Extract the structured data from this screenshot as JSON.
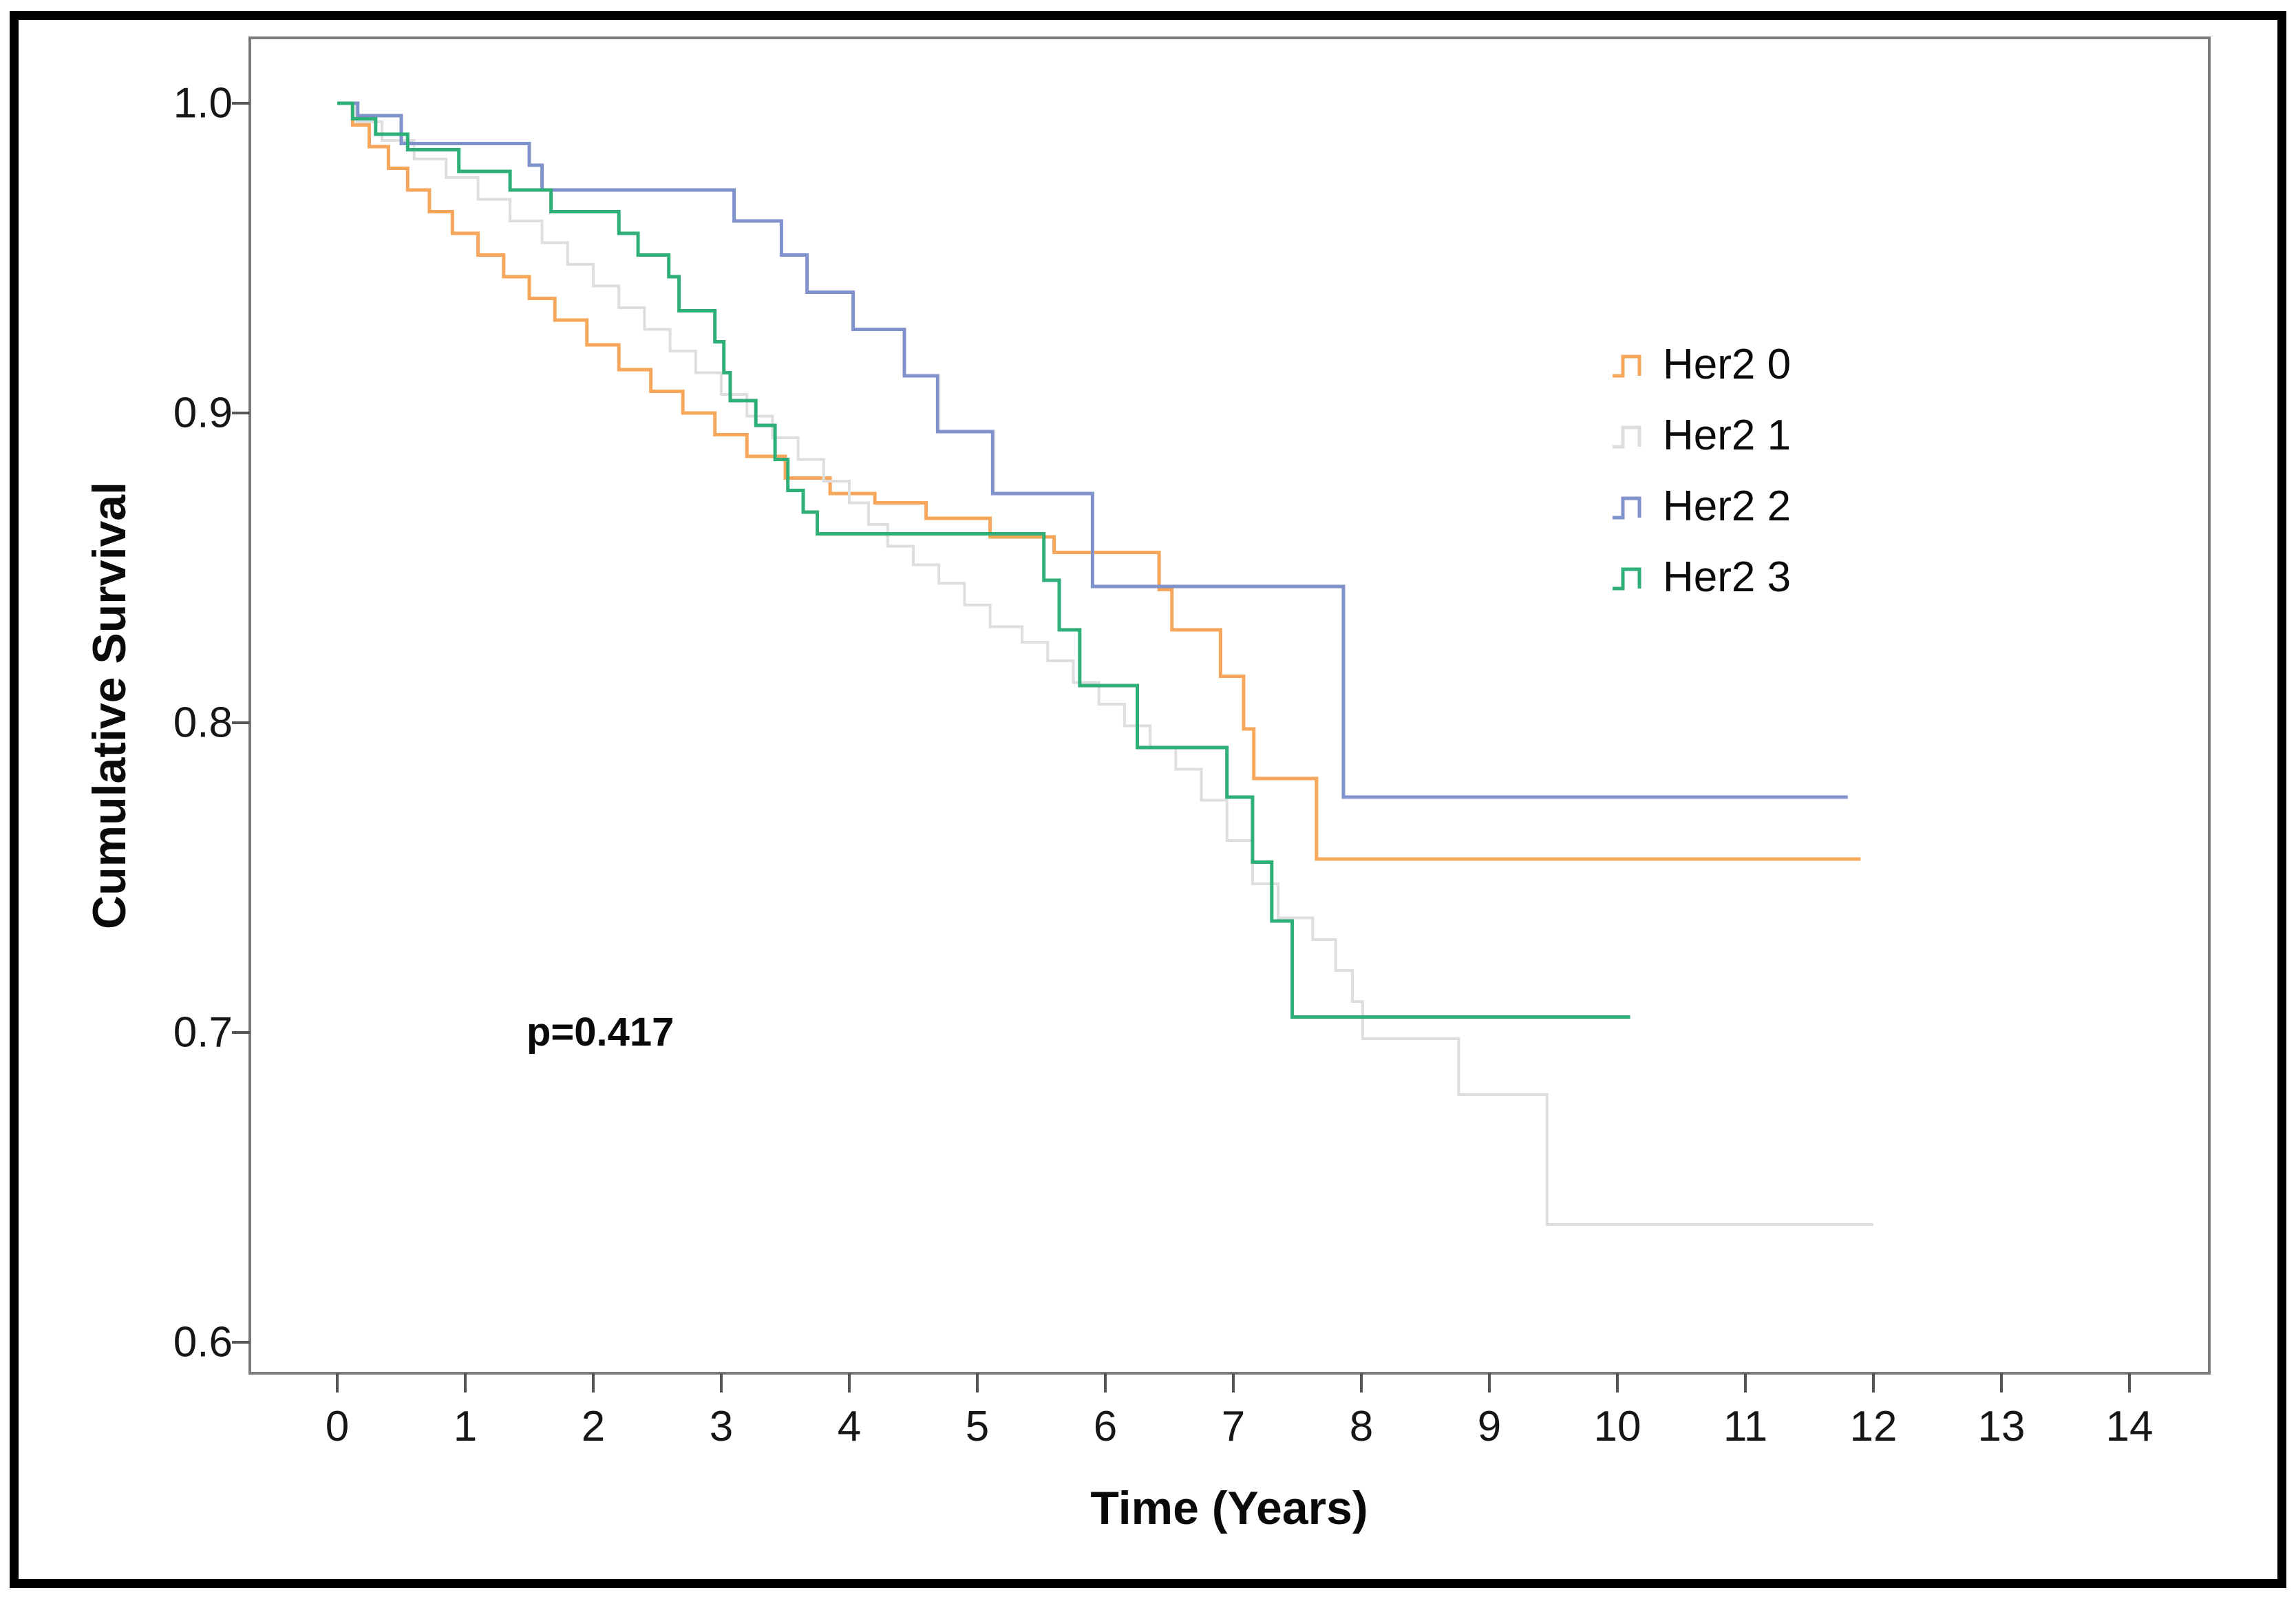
{
  "chart": {
    "p_value": "p=0.417",
    "x_axis": {
      "label": "Time (Years)",
      "ticks": [
        "0",
        "1",
        "2",
        "3",
        "4",
        "5",
        "6",
        "7",
        "8",
        "9",
        "10",
        "11",
        "12",
        "13",
        "14"
      ]
    },
    "y_axis": {
      "label": "Cumulative Survival",
      "ticks": [
        "1.0",
        "0.9",
        "0.8",
        "0.7",
        "0.6"
      ]
    },
    "legend": [
      {
        "label": "Her2 0",
        "color": "#F6A75B"
      },
      {
        "label": "Her2 1",
        "color": "#DEDEDE"
      },
      {
        "label": "Her2 2",
        "color": "#8092CC"
      },
      {
        "label": "Her2 3",
        "color": "#2EAF78"
      }
    ],
    "chart_data": {
      "type": "line",
      "subtype": "kaplan-meier-step-curves",
      "title": "",
      "xlabel": "Time (Years)",
      "ylabel": "Cumulative Survival",
      "xlim": [
        -0.68,
        14.6
      ],
      "ylim": [
        0.59,
        1.012
      ],
      "x_ticks": [
        0,
        1,
        2,
        3,
        4,
        5,
        6,
        7,
        8,
        9,
        10,
        11,
        12,
        13,
        14
      ],
      "y_ticks": [
        1.0,
        0.9,
        0.8,
        0.7,
        0.6
      ],
      "grid": false,
      "legend_position": "upper right",
      "annotation": {
        "text": "p=0.417",
        "x": 1.5,
        "y": 0.695
      },
      "series": [
        {
          "name": "Her2 0",
          "color": "#F6A75B",
          "end_x": 11.9,
          "points": [
            [
              0,
              1.0
            ],
            [
              0.12,
              0.993
            ],
            [
              0.25,
              0.986
            ],
            [
              0.4,
              0.979
            ],
            [
              0.55,
              0.972
            ],
            [
              0.72,
              0.965
            ],
            [
              0.9,
              0.958
            ],
            [
              1.1,
              0.951
            ],
            [
              1.3,
              0.944
            ],
            [
              1.5,
              0.937
            ],
            [
              1.7,
              0.93
            ],
            [
              1.95,
              0.922
            ],
            [
              2.2,
              0.914
            ],
            [
              2.45,
              0.907
            ],
            [
              2.7,
              0.9
            ],
            [
              2.95,
              0.893
            ],
            [
              3.2,
              0.886
            ],
            [
              3.5,
              0.879
            ],
            [
              3.85,
              0.874
            ],
            [
              4.2,
              0.871
            ],
            [
              4.6,
              0.866
            ],
            [
              5.1,
              0.86
            ],
            [
              5.6,
              0.855
            ],
            [
              6.42,
              0.843
            ],
            [
              6.52,
              0.83
            ],
            [
              6.9,
              0.815
            ],
            [
              7.08,
              0.798
            ],
            [
              7.16,
              0.782
            ],
            [
              7.65,
              0.756
            ]
          ]
        },
        {
          "name": "Her2 1",
          "color": "#DEDEDE",
          "end_x": 12.0,
          "points": [
            [
              0,
              1.0
            ],
            [
              0.15,
              0.994
            ],
            [
              0.35,
              0.988
            ],
            [
              0.6,
              0.982
            ],
            [
              0.85,
              0.976
            ],
            [
              1.1,
              0.969
            ],
            [
              1.35,
              0.962
            ],
            [
              1.6,
              0.955
            ],
            [
              1.8,
              0.948
            ],
            [
              2.0,
              0.941
            ],
            [
              2.2,
              0.934
            ],
            [
              2.4,
              0.927
            ],
            [
              2.6,
              0.92
            ],
            [
              2.8,
              0.913
            ],
            [
              3.0,
              0.906
            ],
            [
              3.2,
              0.899
            ],
            [
              3.4,
              0.892
            ],
            [
              3.6,
              0.885
            ],
            [
              3.8,
              0.878
            ],
            [
              4.0,
              0.871
            ],
            [
              4.15,
              0.864
            ],
            [
              4.3,
              0.857
            ],
            [
              4.5,
              0.851
            ],
            [
              4.7,
              0.845
            ],
            [
              4.9,
              0.838
            ],
            [
              5.1,
              0.831
            ],
            [
              5.35,
              0.826
            ],
            [
              5.55,
              0.82
            ],
            [
              5.75,
              0.813
            ],
            [
              5.95,
              0.806
            ],
            [
              6.15,
              0.799
            ],
            [
              6.35,
              0.792
            ],
            [
              6.55,
              0.785
            ],
            [
              6.75,
              0.775
            ],
            [
              6.95,
              0.762
            ],
            [
              7.15,
              0.748
            ],
            [
              7.35,
              0.737
            ],
            [
              7.62,
              0.73
            ],
            [
              7.8,
              0.72
            ],
            [
              7.93,
              0.71
            ],
            [
              8.01,
              0.698
            ],
            [
              8.76,
              0.68
            ],
            [
              9.45,
              0.638
            ]
          ]
        },
        {
          "name": "Her2 2",
          "color": "#8092CC",
          "end_x": 11.8,
          "points": [
            [
              0,
              1.0
            ],
            [
              0.16,
              0.996
            ],
            [
              0.5,
              0.987
            ],
            [
              1.5,
              0.98
            ],
            [
              1.6,
              0.972
            ],
            [
              3.1,
              0.962
            ],
            [
              3.47,
              0.951
            ],
            [
              3.67,
              0.939
            ],
            [
              4.03,
              0.927
            ],
            [
              4.43,
              0.912
            ],
            [
              4.69,
              0.894
            ],
            [
              5.12,
              0.874
            ],
            [
              5.9,
              0.844
            ],
            [
              7.86,
              0.776
            ]
          ]
        },
        {
          "name": "Her2 3",
          "color": "#2EAF78",
          "end_x": 10.1,
          "points": [
            [
              0,
              1.0
            ],
            [
              0.12,
              0.995
            ],
            [
              0.3,
              0.99
            ],
            [
              0.55,
              0.985
            ],
            [
              0.95,
              0.978
            ],
            [
              1.35,
              0.972
            ],
            [
              1.67,
              0.965
            ],
            [
              2.2,
              0.958
            ],
            [
              2.35,
              0.951
            ],
            [
              2.59,
              0.944
            ],
            [
              2.67,
              0.933
            ],
            [
              2.95,
              0.923
            ],
            [
              3.02,
              0.913
            ],
            [
              3.07,
              0.904
            ],
            [
              3.27,
              0.896
            ],
            [
              3.42,
              0.885
            ],
            [
              3.52,
              0.875
            ],
            [
              3.64,
              0.868
            ],
            [
              3.75,
              0.861
            ],
            [
              5.52,
              0.846
            ],
            [
              5.64,
              0.83
            ],
            [
              5.8,
              0.812
            ],
            [
              6.25,
              0.792
            ],
            [
              6.95,
              0.776
            ],
            [
              7.15,
              0.755
            ],
            [
              7.3,
              0.736
            ],
            [
              7.46,
              0.705
            ]
          ]
        }
      ]
    }
  }
}
